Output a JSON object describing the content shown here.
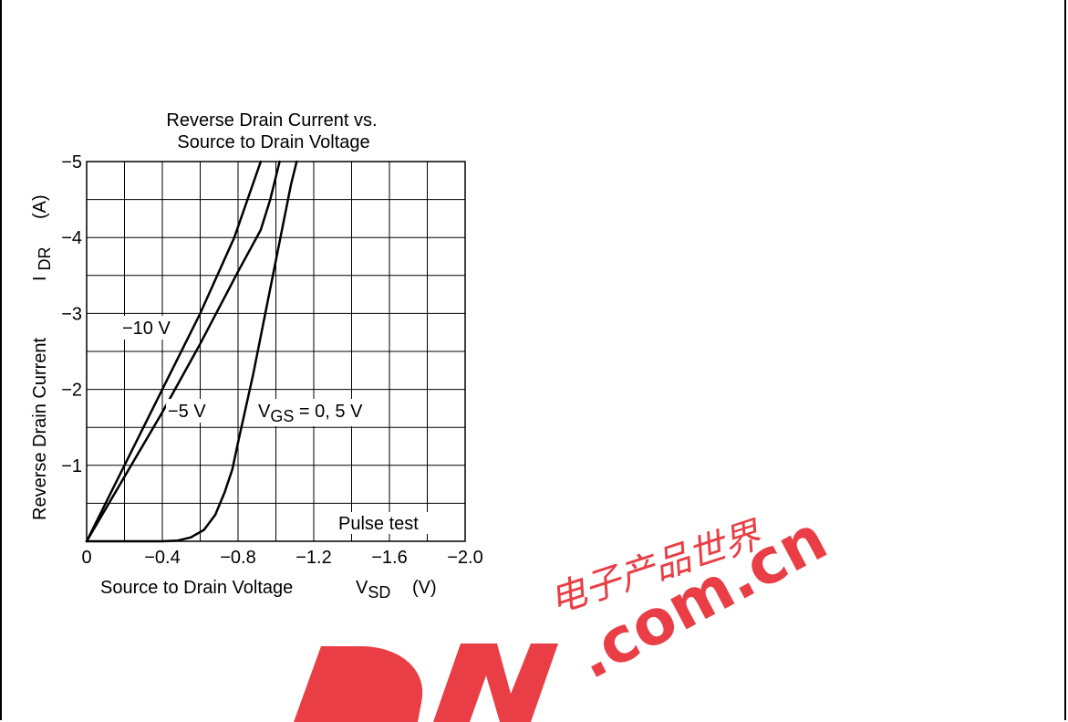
{
  "chart_data": {
    "type": "line",
    "title": [
      "Reverse Drain Current vs.",
      "Source to Drain Voltage"
    ],
    "xlabel": "Source to Drain Voltage",
    "xlabel_symbol": "V",
    "xlabel_subscript": "SD",
    "xlabel_unit": "(V)",
    "ylabel": "Reverse Drain Current",
    "ylabel_symbol": "I",
    "ylabel_subscript": "DR",
    "ylabel_unit": "(A)",
    "xlim": [
      0,
      -2.0
    ],
    "ylim": [
      0,
      -5
    ],
    "xticks": [
      {
        "value": 0,
        "label": "0"
      },
      {
        "value": -0.4,
        "label": "−0.4"
      },
      {
        "value": -0.8,
        "label": "−0.8"
      },
      {
        "value": -1.2,
        "label": "−1.2"
      },
      {
        "value": -1.6,
        "label": "−1.6"
      },
      {
        "value": -2.0,
        "label": "−2.0"
      }
    ],
    "yticks": [
      {
        "value": -1,
        "label": "−1"
      },
      {
        "value": -2,
        "label": "−2"
      },
      {
        "value": -3,
        "label": "−3"
      },
      {
        "value": -4,
        "label": "−4"
      },
      {
        "value": -5,
        "label": "−5"
      }
    ],
    "grid": true,
    "x_grid_step": -0.2,
    "y_grid_step": -0.5,
    "series": [
      {
        "id": "vgs-minus-10",
        "label": "−10 V",
        "points": [
          [
            0,
            0
          ],
          [
            -0.2,
            -1.0
          ],
          [
            -0.4,
            -2.0
          ],
          [
            -0.6,
            -3.0
          ],
          [
            -0.78,
            -4.0
          ],
          [
            -0.92,
            -5.0
          ]
        ]
      },
      {
        "id": "vgs-minus-5",
        "label": "−5 V",
        "points": [
          [
            0,
            0
          ],
          [
            -0.2,
            -0.85
          ],
          [
            -0.4,
            -1.7
          ],
          [
            -0.6,
            -2.6
          ],
          [
            -0.8,
            -3.55
          ],
          [
            -0.92,
            -4.1
          ],
          [
            -0.97,
            -4.5
          ],
          [
            -1.02,
            -5.0
          ]
        ]
      },
      {
        "id": "vgs-0-5",
        "label_main": "V",
        "label_sub": "GS",
        "label_rest": " = 0, 5 V",
        "points": [
          [
            0,
            0
          ],
          [
            -0.4,
            0
          ],
          [
            -0.48,
            -0.01
          ],
          [
            -0.55,
            -0.05
          ],
          [
            -0.62,
            -0.15
          ],
          [
            -0.68,
            -0.35
          ],
          [
            -0.73,
            -0.65
          ],
          [
            -0.77,
            -0.95
          ],
          [
            -0.8,
            -1.3
          ],
          [
            -0.84,
            -1.75
          ],
          [
            -0.88,
            -2.2
          ],
          [
            -0.92,
            -2.7
          ],
          [
            -0.96,
            -3.2
          ],
          [
            -1.0,
            -3.7
          ],
          [
            -1.04,
            -4.2
          ],
          [
            -1.08,
            -4.7
          ],
          [
            -1.11,
            -5.0
          ]
        ]
      }
    ],
    "annotations": [
      {
        "text": "Pulse test"
      }
    ]
  },
  "watermark": {
    "chinese": "电子产品世界",
    "domain": ".com.cn",
    "logo_letters": "DN",
    "color": "#e8343c"
  }
}
